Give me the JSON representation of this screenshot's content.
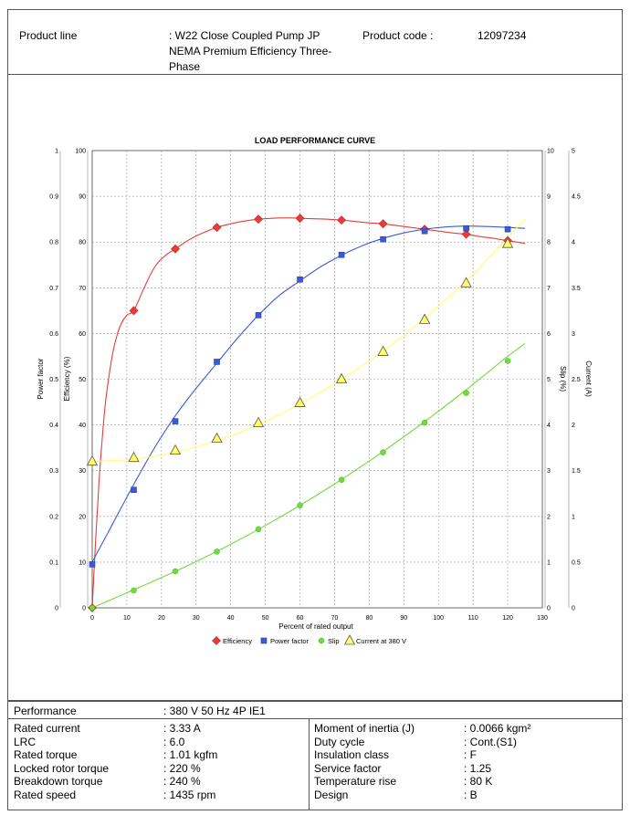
{
  "header": {
    "product_line_label": "Product line",
    "product_line_value": [
      ": W22 Close Coupled Pump JP",
      "NEMA Premium Efficiency Three-",
      "Phase"
    ],
    "product_code_label": "Product code :",
    "product_code_value": "12097234"
  },
  "specs": {
    "performance_label": "Performance",
    "performance_value": ": 380 V 50 Hz 4P IE1",
    "left": [
      {
        "label": "Rated current",
        "value": ": 3.33 A"
      },
      {
        "label": "LRC",
        "value": ": 6.0"
      },
      {
        "label": "Rated torque",
        "value": ": 1.01 kgfm"
      },
      {
        "label": "Locked rotor torque",
        "value": ": 220 %"
      },
      {
        "label": "Breakdown torque",
        "value": ": 240 %"
      },
      {
        "label": "Rated speed",
        "value": ": 1435 rpm"
      }
    ],
    "right": [
      {
        "label": "Moment of inertia (J)",
        "value": ": 0.0066 kgm²"
      },
      {
        "label": "Duty cycle",
        "value": ": Cont.(S1)"
      },
      {
        "label": "Insulation class",
        "value": ": F"
      },
      {
        "label": "Service factor",
        "value": ": 1.25"
      },
      {
        "label": "Temperature rise",
        "value": ": 80 K"
      },
      {
        "label": "Design",
        "value": ": B"
      }
    ]
  },
  "chart_data": {
    "type": "line",
    "title": "LOAD PERFORMANCE CURVE",
    "xlabel": "Percent of rated output",
    "xlim": [
      0,
      130
    ],
    "x_ticks": [
      0,
      10,
      20,
      30,
      40,
      50,
      60,
      70,
      80,
      90,
      100,
      110,
      120,
      130
    ],
    "axes": {
      "power_factor": {
        "label": "Power factor",
        "lim": [
          0,
          1
        ],
        "ticks": [
          "0",
          "0.1",
          "0.2",
          "0.3",
          "0.4",
          "0.5",
          "0.6",
          "0.7",
          "0.8",
          "0.9",
          "1"
        ]
      },
      "efficiency": {
        "label": "Efficiency (%)",
        "lim": [
          0,
          100
        ],
        "ticks": [
          "0",
          "10",
          "20",
          "30",
          "40",
          "50",
          "60",
          "70",
          "80",
          "90",
          "100"
        ]
      },
      "slip": {
        "label": "Slip (%)",
        "lim": [
          0,
          10
        ],
        "ticks": [
          "0",
          "1",
          "2",
          "3",
          "4",
          "5",
          "6",
          "7",
          "8",
          "9",
          "10"
        ]
      },
      "current": {
        "label": "Current (A)",
        "lim": [
          0,
          5
        ],
        "ticks": [
          "0",
          "0.5",
          "1",
          "1.5",
          "2",
          "2.5",
          "3",
          "3.5",
          "4",
          "4.5",
          "5"
        ]
      }
    },
    "grid": true,
    "legend_position": "bottom",
    "series": [
      {
        "name": "Efficiency",
        "axis": "efficiency",
        "color": "#e83c3c",
        "marker": "diamond",
        "x": [
          0,
          12,
          24,
          36,
          48,
          60,
          72,
          84,
          96,
          108,
          120
        ],
        "y": [
          0,
          65,
          78.5,
          83.2,
          85,
          85.2,
          84.8,
          84,
          82.8,
          81.7,
          80.3
        ],
        "curve_x": [
          0,
          1,
          2,
          3,
          4,
          6,
          8,
          10,
          12,
          15,
          18,
          21,
          24,
          28,
          32,
          36,
          40,
          44,
          48,
          52,
          56,
          60,
          64,
          68,
          72,
          76,
          80,
          84,
          88,
          92,
          96,
          100,
          104,
          108,
          112,
          116,
          120,
          125
        ],
        "curve_y": [
          0,
          15,
          28,
          38,
          46,
          56,
          61.5,
          64,
          65,
          70,
          74.5,
          77,
          78.5,
          80.5,
          82,
          83.2,
          84,
          84.6,
          85,
          85.2,
          85.3,
          85.2,
          85.1,
          85,
          84.8,
          84.5,
          84.2,
          84,
          83.6,
          83.2,
          82.8,
          82.4,
          82,
          81.7,
          81.2,
          80.8,
          80.3,
          79.7
        ]
      },
      {
        "name": "Power factor",
        "axis": "power_factor",
        "color": "#3b5bd6",
        "marker": "square",
        "x": [
          0,
          12,
          24,
          36,
          48,
          60,
          72,
          84,
          96,
          108,
          120
        ],
        "y": [
          0.095,
          0.258,
          0.408,
          0.538,
          0.64,
          0.718,
          0.772,
          0.806,
          0.824,
          0.83,
          0.828
        ],
        "curve_x": [
          0,
          6,
          12,
          18,
          24,
          30,
          36,
          42,
          48,
          54,
          60,
          66,
          72,
          78,
          84,
          90,
          96,
          102,
          108,
          114,
          120,
          125
        ],
        "curve_y": [
          0.1,
          0.185,
          0.27,
          0.35,
          0.42,
          0.48,
          0.535,
          0.59,
          0.64,
          0.683,
          0.715,
          0.746,
          0.771,
          0.792,
          0.808,
          0.82,
          0.828,
          0.833,
          0.835,
          0.834,
          0.832,
          0.83
        ]
      },
      {
        "name": "Slip",
        "axis": "slip",
        "color": "#6fdc3c",
        "marker": "circle",
        "x": [
          0,
          12,
          24,
          36,
          48,
          60,
          72,
          84,
          96,
          108,
          120
        ],
        "y": [
          0,
          0.38,
          0.8,
          1.23,
          1.72,
          2.24,
          2.8,
          3.4,
          4.05,
          4.7,
          5.4
        ],
        "curve_x": [
          0,
          10,
          20,
          30,
          40,
          50,
          60,
          70,
          80,
          90,
          100,
          110,
          120,
          125
        ],
        "curve_y": [
          0,
          0.33,
          0.66,
          1.01,
          1.39,
          1.8,
          2.24,
          2.71,
          3.21,
          3.74,
          4.3,
          4.89,
          5.5,
          5.78
        ]
      },
      {
        "name": "Current at 380 V",
        "axis": "current",
        "color": "#ffff66",
        "marker": "triangle",
        "x": [
          0,
          12,
          24,
          36,
          48,
          60,
          72,
          84,
          96,
          108,
          120
        ],
        "y": [
          1.6,
          1.64,
          1.72,
          1.85,
          2.02,
          2.24,
          2.5,
          2.8,
          3.15,
          3.55,
          3.98
        ],
        "curve_x": [
          0,
          10,
          20,
          30,
          40,
          50,
          60,
          70,
          80,
          90,
          100,
          110,
          120,
          125
        ],
        "curve_y": [
          1.6,
          1.62,
          1.67,
          1.76,
          1.88,
          2.04,
          2.23,
          2.45,
          2.7,
          2.98,
          3.3,
          3.65,
          4.05,
          4.25
        ]
      }
    ]
  }
}
